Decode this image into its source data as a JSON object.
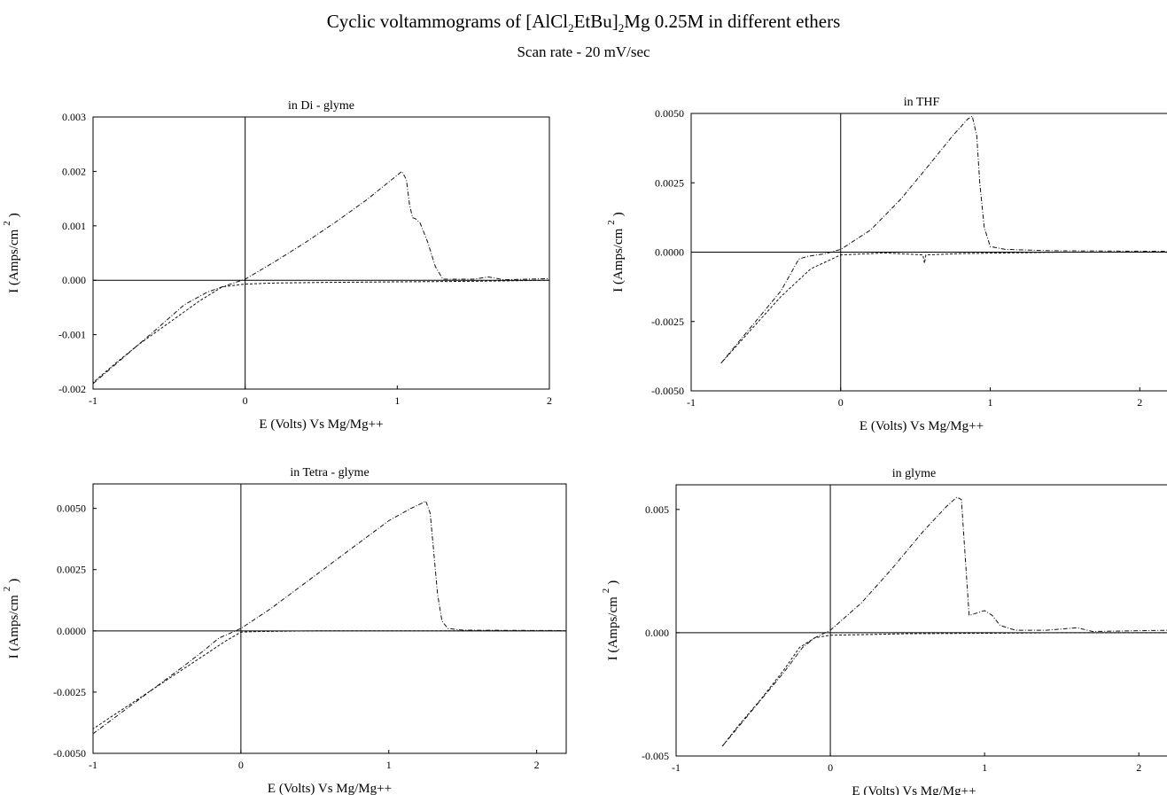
{
  "header": {
    "title_prefix": "Cyclic voltammograms  of  [AlCl",
    "title_sub1": "2",
    "title_mid": "EtBu]",
    "title_sub2": "2",
    "title_suffix": "Mg 0.25M  in different ethers",
    "subtitle": "Scan rate - 20 mV/sec"
  },
  "chart_data": [
    {
      "type": "line",
      "title": "in Di - glyme",
      "xlabel": "E (Volts)    Vs Mg/Mg++",
      "ylabel": "I (Amps/cm",
      "ylabel_sup": "2",
      "ylabel_close": ")",
      "xlim": [
        -1,
        2
      ],
      "ylim": [
        -0.002,
        0.003
      ],
      "xticks": [
        "-1",
        "0",
        "1",
        "2"
      ],
      "xtick_values": [
        -1,
        0,
        1,
        2
      ],
      "yticks": [
        "-0.002",
        "-0.001",
        "0.000",
        "0.001",
        "0.002",
        "0.003"
      ],
      "ytick_values": [
        -0.002,
        -0.001,
        0,
        0.001,
        0.002,
        0.003
      ],
      "grid": false,
      "series": [
        {
          "x": [
            -1.0,
            -0.8,
            -0.6,
            -0.4,
            -0.25,
            -0.15,
            0.0,
            0.2,
            0.4,
            0.6,
            0.8,
            0.95,
            1.03,
            1.06,
            1.08,
            1.1,
            1.12,
            1.15,
            1.2,
            1.25,
            1.3,
            1.5,
            1.6,
            1.7,
            2.0
          ],
          "y": [
            -0.0019,
            -0.00142,
            -0.00094,
            -0.00045,
            -0.00022,
            -0.00012,
            2e-05,
            0.00035,
            0.0007,
            0.00108,
            0.00148,
            0.00182,
            0.002,
            0.00185,
            0.0014,
            0.00115,
            0.00113,
            0.00105,
            0.0007,
            0.00025,
            2e-05,
            2e-05,
            6e-05,
            1e-05,
            3e-05
          ]
        },
        {
          "x": [
            2.0,
            1.5,
            1.0,
            0.5,
            0.2,
            0.0,
            -0.15,
            -0.3,
            -0.5,
            -0.7,
            -0.85,
            -1.0
          ],
          "y": [
            0.0,
            -2e-05,
            -3e-05,
            -4e-05,
            -5e-05,
            -7e-05,
            -0.00012,
            -0.00038,
            -0.00078,
            -0.00118,
            -0.00152,
            -0.00188
          ]
        }
      ]
    },
    {
      "type": "line",
      "title": "in  THF",
      "xlabel": "E (Volts)    Vs Mg/Mg++",
      "ylabel": "I (Amps/cm",
      "ylabel_sup": "2",
      "ylabel_close": ")",
      "xlim": [
        -1,
        2.2
      ],
      "ylim": [
        -0.005,
        0.005
      ],
      "xticks": [
        "-1",
        "0",
        "1",
        "2"
      ],
      "xtick_values": [
        -1,
        0,
        1,
        2
      ],
      "yticks": [
        "-0.0050",
        "-0.0025",
        "0.0000",
        "0.0025",
        "0.0050"
      ],
      "ytick_values": [
        -0.005,
        -0.0025,
        0,
        0.0025,
        0.005
      ],
      "grid": false,
      "series": [
        {
          "x": [
            -0.8,
            -0.6,
            -0.4,
            -0.28,
            -0.22,
            -0.1,
            0.0,
            0.2,
            0.4,
            0.6,
            0.75,
            0.85,
            0.88,
            0.91,
            0.93,
            0.96,
            1.0,
            1.1,
            1.4,
            2.2
          ],
          "y": [
            -0.004,
            -0.0027,
            -0.0014,
            -0.00025,
            -0.00015,
            -5e-05,
            0.0001,
            0.0008,
            0.0019,
            0.0032,
            0.0042,
            0.0048,
            0.0049,
            0.0042,
            0.0025,
            0.0009,
            0.0002,
            0.0001,
            5e-05,
            3e-05
          ]
        },
        {
          "x": [
            2.2,
            1.5,
            0.8,
            0.57,
            0.56,
            0.55,
            0.3,
            0.0,
            -0.2,
            -0.4,
            -0.6,
            -0.8
          ],
          "y": [
            0.0,
            0.0,
            -5e-05,
            -0.0001,
            -0.0004,
            -0.0001,
            -3e-05,
            -0.0001,
            -0.0006,
            -0.0016,
            -0.0028,
            -0.004
          ]
        }
      ]
    },
    {
      "type": "line",
      "title": "in Tetra - glyme",
      "xlabel": "E (Volts)    Vs Mg/Mg++",
      "ylabel": "I (Amps/cm",
      "ylabel_sup": "2",
      "ylabel_close": ")",
      "xlim": [
        -1,
        2.2
      ],
      "ylim": [
        -0.005,
        0.006
      ],
      "xticks": [
        "-1",
        "0",
        "1",
        "2"
      ],
      "xtick_values": [
        -1,
        0,
        1,
        2
      ],
      "yticks": [
        "-0.0050",
        "-0.0025",
        "0.0000",
        "0.0025",
        "0.0050"
      ],
      "ytick_values": [
        -0.005,
        -0.0025,
        0,
        0.0025,
        0.005
      ],
      "grid": false,
      "series": [
        {
          "x": [
            -1.0,
            -0.8,
            -0.6,
            -0.4,
            -0.25,
            -0.15,
            0.0,
            0.2,
            0.4,
            0.6,
            0.8,
            1.0,
            1.15,
            1.22,
            1.25,
            1.28,
            1.3,
            1.33,
            1.36,
            1.4,
            1.5,
            2.2
          ],
          "y": [
            -0.0042,
            -0.0033,
            -0.0024,
            -0.0015,
            -0.0008,
            -0.0003,
            0.0001,
            0.0009,
            0.0018,
            0.0027,
            0.0036,
            0.0045,
            0.005,
            0.0052,
            0.0053,
            0.0048,
            0.0035,
            0.0015,
            0.0004,
            0.0001,
            3e-05,
            1e-05
          ]
        },
        {
          "x": [
            2.2,
            1.5,
            1.0,
            0.5,
            0.1,
            0.0,
            -0.1,
            -0.3,
            -0.5,
            -0.7,
            -0.9,
            -1.0
          ],
          "y": [
            0.0,
            0.0,
            0.0,
            0.0,
            -3e-05,
            -5e-05,
            -0.0004,
            -0.0012,
            -0.002,
            -0.0028,
            -0.0036,
            -0.004
          ]
        }
      ]
    },
    {
      "type": "line",
      "title": "in  glyme",
      "xlabel": "E (Volts)    Vs Mg/Mg++",
      "ylabel": "I (Amps/cm",
      "ylabel_sup": "2",
      "ylabel_close": ")",
      "xlim": [
        -1,
        2.2
      ],
      "ylim": [
        -0.005,
        0.006
      ],
      "xticks": [
        "-1",
        "0",
        "1",
        "2"
      ],
      "xtick_values": [
        -1,
        0,
        1,
        2
      ],
      "yticks": [
        "-0.005",
        "0.000",
        "0.005"
      ],
      "ytick_values": [
        -0.005,
        0,
        0.005
      ],
      "grid": false,
      "series": [
        {
          "x": [
            -0.7,
            -0.5,
            -0.3,
            -0.18,
            -0.1,
            0.0,
            0.2,
            0.4,
            0.6,
            0.75,
            0.82,
            0.85,
            0.87,
            0.9,
            0.95,
            1.0,
            1.05,
            1.1,
            1.2,
            1.4,
            1.6,
            1.7,
            2.2
          ],
          "y": [
            -0.0046,
            -0.0031,
            -0.0016,
            -0.0006,
            -0.0002,
            0.0001,
            0.0012,
            0.0026,
            0.0041,
            0.0051,
            0.0055,
            0.0054,
            0.0035,
            0.0007,
            0.0008,
            0.0009,
            0.0007,
            0.0003,
            0.0001,
            0.0001,
            0.0002,
            5e-05,
            0.0001
          ]
        },
        {
          "x": [
            2.2,
            1.5,
            1.0,
            0.5,
            0.2,
            0.0,
            -0.1,
            -0.2,
            -0.3,
            -0.45,
            -0.6,
            -0.7
          ],
          "y": [
            0.0,
            0.0,
            -2e-05,
            -4e-05,
            -8e-05,
            -0.0001,
            -0.0002,
            -0.0006,
            -0.0015,
            -0.0027,
            -0.0038,
            -0.0046
          ]
        }
      ]
    }
  ]
}
